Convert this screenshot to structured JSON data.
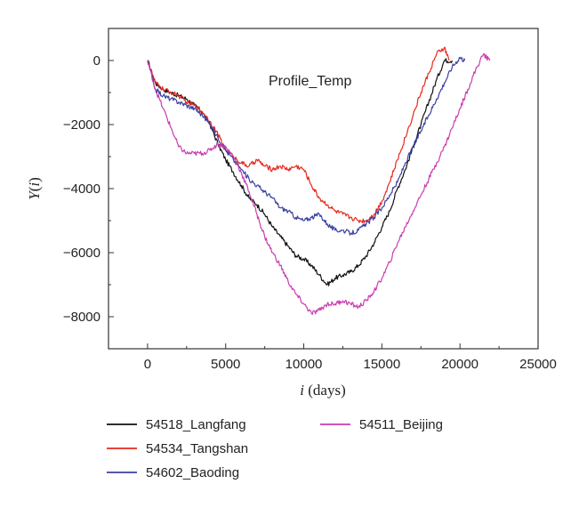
{
  "chart_data": {
    "type": "line",
    "annotation": "Profile_Temp",
    "xlabel": {
      "var": "i",
      "unit": " (days)"
    },
    "ylabel": {
      "var": "Y",
      "arg": "i"
    },
    "xlim": [
      -2500,
      25000
    ],
    "ylim": [
      -9000,
      1000
    ],
    "xticks": [
      0,
      5000,
      10000,
      15000,
      20000,
      25000
    ],
    "yticks": [
      0,
      -2000,
      -4000,
      -6000,
      -8000
    ],
    "ytick_labels": [
      "0",
      "−2000",
      "−4000",
      "−6000",
      "−8000"
    ],
    "grid": false,
    "legend_position": "bottom",
    "series": [
      {
        "name": "54518_Langfang",
        "color": "#111111",
        "x": [
          0,
          500,
          1000,
          1500,
          2000,
          2500,
          3000,
          3500,
          4000,
          4500,
          5000,
          5500,
          6000,
          6500,
          7000,
          7500,
          8000,
          8500,
          9000,
          9500,
          10000,
          10500,
          11000,
          11500,
          12000,
          12500,
          13000,
          13500,
          14000,
          14500,
          15000,
          15500,
          16000,
          16500,
          17000,
          17500,
          18000,
          18500,
          19000,
          19500
        ],
        "y": [
          0,
          -700,
          -900,
          -1000,
          -1100,
          -1200,
          -1400,
          -1600,
          -2000,
          -2600,
          -3100,
          -3500,
          -3900,
          -4300,
          -4500,
          -4800,
          -5200,
          -5500,
          -5800,
          -6100,
          -6200,
          -6400,
          -6700,
          -7000,
          -6800,
          -6700,
          -6600,
          -6400,
          -6100,
          -5700,
          -5200,
          -4700,
          -4000,
          -3400,
          -2700,
          -2000,
          -1300,
          -600,
          0,
          0
        ]
      },
      {
        "name": "54534_Tangshan",
        "color": "#e8281e",
        "x": [
          0,
          500,
          1000,
          1500,
          2000,
          2500,
          3000,
          3500,
          4000,
          4500,
          5000,
          5500,
          6000,
          6500,
          7000,
          7500,
          8000,
          8500,
          9000,
          9500,
          10000,
          10500,
          11000,
          11500,
          12000,
          12500,
          13000,
          13500,
          14000,
          14500,
          15000,
          15500,
          16000,
          16500,
          17000,
          17500,
          18000,
          18500,
          19000,
          19300
        ],
        "y": [
          0,
          -700,
          -900,
          -1000,
          -1100,
          -1300,
          -1400,
          -1600,
          -1900,
          -2300,
          -2800,
          -3000,
          -3200,
          -3300,
          -3100,
          -3300,
          -3400,
          -3300,
          -3400,
          -3300,
          -3400,
          -3900,
          -4300,
          -4500,
          -4700,
          -4800,
          -4900,
          -5000,
          -5000,
          -4800,
          -4400,
          -3800,
          -3100,
          -2400,
          -1700,
          -1000,
          -400,
          200,
          400,
          0
        ]
      },
      {
        "name": "54602_Baoding",
        "color": "#3b40a0",
        "x": [
          0,
          500,
          1000,
          1500,
          2000,
          2500,
          3000,
          3500,
          4000,
          4500,
          5000,
          5500,
          6000,
          6500,
          7000,
          7500,
          8000,
          8500,
          9000,
          9500,
          10000,
          10500,
          11000,
          11500,
          12000,
          12500,
          13000,
          13500,
          14000,
          14500,
          15000,
          15500,
          16000,
          16500,
          17000,
          17500,
          18000,
          18500,
          19000,
          19500,
          20000,
          20300
        ],
        "y": [
          0,
          -900,
          -1100,
          -1200,
          -1300,
          -1400,
          -1500,
          -1700,
          -2000,
          -2400,
          -2800,
          -3100,
          -3400,
          -3700,
          -3900,
          -4100,
          -4300,
          -4600,
          -4700,
          -4900,
          -5000,
          -4900,
          -4800,
          -5100,
          -5300,
          -5300,
          -5400,
          -5300,
          -5100,
          -4900,
          -4600,
          -4200,
          -3800,
          -3200,
          -2700,
          -2200,
          -1700,
          -1200,
          -700,
          -200,
          100,
          0
        ]
      },
      {
        "name": "54511_Beijing",
        "color": "#c93cb0",
        "x": [
          0,
          500,
          1000,
          1500,
          2000,
          2500,
          3000,
          3500,
          4000,
          4500,
          5000,
          5500,
          6000,
          6500,
          7000,
          7500,
          8000,
          8500,
          9000,
          9500,
          10000,
          10500,
          11000,
          11500,
          12000,
          12500,
          13000,
          13500,
          14000,
          14500,
          15000,
          15500,
          16000,
          16500,
          17000,
          17500,
          18000,
          18500,
          19000,
          19500,
          20000,
          20500,
          21000,
          21500,
          21900
        ],
        "y": [
          0,
          -900,
          -1500,
          -2100,
          -2700,
          -2900,
          -2900,
          -2900,
          -2800,
          -2600,
          -2700,
          -3000,
          -3500,
          -4100,
          -4800,
          -5500,
          -6000,
          -6400,
          -6900,
          -7300,
          -7600,
          -7900,
          -7800,
          -7600,
          -7600,
          -7500,
          -7600,
          -7700,
          -7500,
          -7200,
          -6800,
          -6300,
          -5700,
          -5200,
          -4700,
          -4200,
          -3700,
          -3200,
          -2700,
          -2100,
          -1500,
          -900,
          -300,
          200,
          0
        ]
      }
    ]
  }
}
